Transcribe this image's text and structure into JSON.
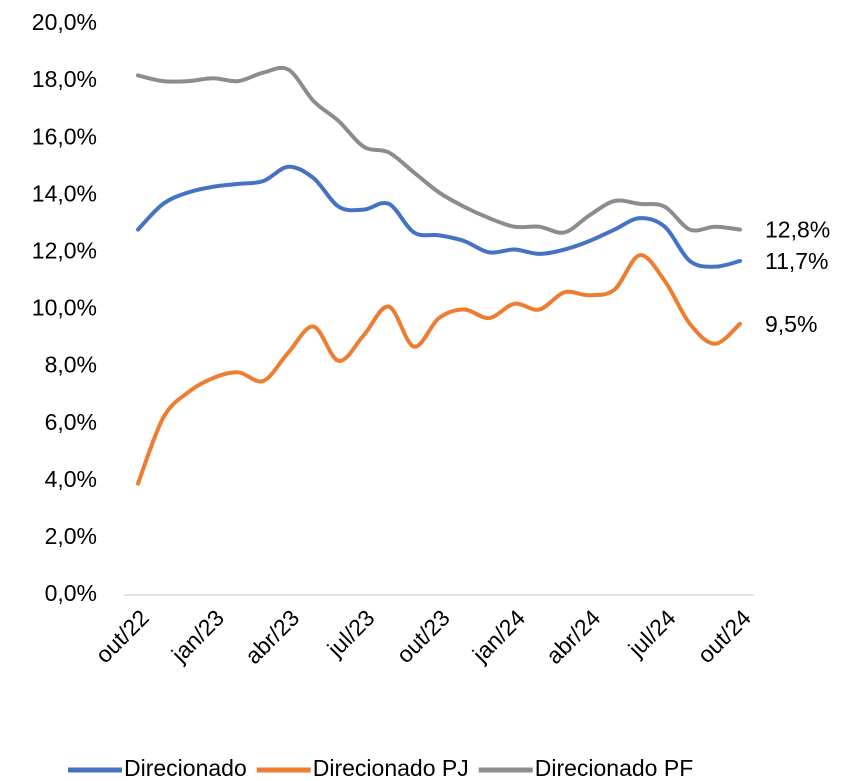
{
  "chart_data": {
    "type": "line",
    "categories": [
      "out/22",
      null,
      null,
      "jan/23",
      null,
      null,
      "abr/23",
      null,
      null,
      "jul/23",
      null,
      null,
      "out/23",
      null,
      null,
      "jan/24",
      null,
      null,
      "abr/24",
      null,
      null,
      "jul/24",
      null,
      null,
      "out/24"
    ],
    "series": [
      {
        "name": "Direcionado",
        "color": "#4472c4",
        "values": [
          12.8,
          13.7,
          14.1,
          14.3,
          14.4,
          14.5,
          15.0,
          14.6,
          13.6,
          13.5,
          13.7,
          12.7,
          12.6,
          12.4,
          12.0,
          12.1,
          11.95,
          12.1,
          12.4,
          12.8,
          13.2,
          12.9,
          11.7,
          11.5,
          11.7
        ],
        "value_labels": [
          null,
          null,
          null,
          null,
          null,
          null,
          null,
          null,
          null,
          null,
          null,
          null,
          null,
          null,
          null,
          null,
          null,
          null,
          null,
          null,
          null,
          null,
          null,
          null,
          "11,7%"
        ]
      },
      {
        "name": "Direcionado PJ",
        "color": "#ed7d31",
        "values": [
          3.9,
          6.2,
          7.1,
          7.6,
          7.8,
          7.5,
          8.5,
          9.4,
          8.2,
          9.1,
          10.1,
          8.7,
          9.7,
          10.0,
          9.7,
          10.2,
          10.0,
          10.6,
          10.5,
          10.7,
          11.9,
          11.0,
          9.5,
          8.8,
          9.5
        ],
        "value_labels": [
          null,
          null,
          null,
          null,
          null,
          null,
          null,
          null,
          null,
          null,
          null,
          null,
          null,
          null,
          null,
          null,
          null,
          null,
          null,
          null,
          null,
          null,
          null,
          null,
          "9,5%"
        ]
      },
      {
        "name": "Direcionado PF",
        "color": "#8c8c8c",
        "values": [
          18.2,
          18.0,
          18.0,
          18.1,
          18.0,
          18.3,
          18.4,
          17.3,
          16.6,
          15.7,
          15.5,
          14.8,
          14.1,
          13.6,
          13.2,
          12.9,
          12.9,
          12.7,
          13.3,
          13.8,
          13.7,
          13.6,
          12.8,
          12.9,
          12.8
        ],
        "value_labels": [
          null,
          null,
          null,
          null,
          null,
          null,
          null,
          null,
          null,
          null,
          null,
          null,
          null,
          null,
          null,
          null,
          null,
          null,
          null,
          null,
          null,
          null,
          null,
          null,
          "12,8%"
        ]
      }
    ],
    "ylim": [
      0,
      20
    ],
    "yticks": [
      {
        "value": 0,
        "label": "0,0%"
      },
      {
        "value": 2,
        "label": "2,0%"
      },
      {
        "value": 4,
        "label": "4,0%"
      },
      {
        "value": 6,
        "label": "6,0%"
      },
      {
        "value": 8,
        "label": "8,0%"
      },
      {
        "value": 10,
        "label": "10,0%"
      },
      {
        "value": 12,
        "label": "12,0%"
      },
      {
        "value": 14,
        "label": "14,0%"
      },
      {
        "value": 16,
        "label": "16,0%"
      },
      {
        "value": 18,
        "label": "18,0%"
      },
      {
        "value": 20,
        "label": "20,0%"
      }
    ],
    "grid": false,
    "legend": "bottom"
  }
}
